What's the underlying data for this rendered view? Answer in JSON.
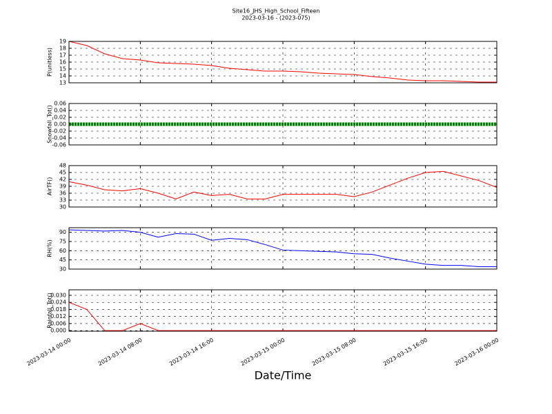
{
  "chart_data": [
    {
      "type": "line",
      "title": "Site16_JHS_High_School_Fifteen",
      "subtitle": "2023-03-16 - (2023-075)",
      "ylabel": "P(unitless)",
      "color": "#ff0000",
      "x": [
        "2023-03-14 00:00",
        "2023-03-14 02:00",
        "2023-03-14 04:00",
        "2023-03-14 06:00",
        "2023-03-14 08:00",
        "2023-03-14 10:00",
        "2023-03-14 12:00",
        "2023-03-14 14:00",
        "2023-03-14 16:00",
        "2023-03-14 18:00",
        "2023-03-14 20:00",
        "2023-03-14 22:00",
        "2023-03-15 00:00",
        "2023-03-15 02:00",
        "2023-03-15 04:00",
        "2023-03-15 06:00",
        "2023-03-15 08:00",
        "2023-03-15 10:00",
        "2023-03-15 12:00",
        "2023-03-15 14:00",
        "2023-03-15 16:00",
        "2023-03-15 18:00",
        "2023-03-15 20:00",
        "2023-03-15 22:00",
        "2023-03-16 00:00"
      ],
      "values": [
        19,
        18.4,
        17.2,
        16.5,
        16.3,
        15.9,
        15.8,
        15.7,
        15.5,
        15.1,
        14.9,
        14.7,
        14.7,
        14.6,
        14.4,
        14.3,
        14.2,
        13.9,
        13.7,
        13.4,
        13.3,
        13.3,
        13.2,
        13.1,
        13.1
      ],
      "xlim": [
        "2023-03-14 00:00",
        "2023-03-16 00:00"
      ],
      "ylim": [
        13,
        19
      ],
      "yticks": [
        13,
        14,
        15,
        16,
        17,
        18,
        19
      ]
    },
    {
      "type": "line",
      "ylabel": "Snowfall_Tot()",
      "color": "#008000",
      "x": [
        "2023-03-14 00:00",
        "2023-03-14 02:00",
        "2023-03-14 04:00",
        "2023-03-14 06:00",
        "2023-03-14 08:00",
        "2023-03-14 10:00",
        "2023-03-14 12:00",
        "2023-03-14 14:00",
        "2023-03-14 16:00",
        "2023-03-14 18:00",
        "2023-03-14 20:00",
        "2023-03-14 22:00",
        "2023-03-15 00:00",
        "2023-03-15 02:00",
        "2023-03-15 04:00",
        "2023-03-15 06:00",
        "2023-03-15 08:00",
        "2023-03-15 10:00",
        "2023-03-15 12:00",
        "2023-03-15 14:00",
        "2023-03-15 16:00",
        "2023-03-15 18:00",
        "2023-03-15 20:00",
        "2023-03-15 22:00",
        "2023-03-16 00:00"
      ],
      "values": [
        0,
        0,
        0,
        0,
        0,
        0,
        0,
        0,
        0,
        0,
        0,
        0,
        0,
        0,
        0,
        0,
        0,
        0,
        0,
        0,
        0,
        0,
        0,
        0,
        0
      ],
      "xlim": [
        "2023-03-14 00:00",
        "2023-03-16 00:00"
      ],
      "ylim": [
        -0.06,
        0.06
      ],
      "yticks": [
        {
          "value": -0.06,
          "label": "-0.06"
        },
        {
          "value": -0.04,
          "label": "-0.04"
        },
        {
          "value": -0.02,
          "label": "-0.02"
        },
        {
          "value": 0,
          "label": "0.00"
        },
        {
          "value": 0.02,
          "label": "0.02"
        },
        {
          "value": 0.04,
          "label": "0.04"
        },
        {
          "value": 0.06,
          "label": "0.06"
        }
      ]
    },
    {
      "type": "line",
      "ylabel": "AirTF()",
      "color": "#ff0000",
      "x": [
        "2023-03-14 00:00",
        "2023-03-14 02:00",
        "2023-03-14 04:00",
        "2023-03-14 06:00",
        "2023-03-14 08:00",
        "2023-03-14 10:00",
        "2023-03-14 12:00",
        "2023-03-14 14:00",
        "2023-03-14 16:00",
        "2023-03-14 18:00",
        "2023-03-14 20:00",
        "2023-03-14 22:00",
        "2023-03-15 00:00",
        "2023-03-15 02:00",
        "2023-03-15 04:00",
        "2023-03-15 06:00",
        "2023-03-15 08:00",
        "2023-03-15 10:00",
        "2023-03-15 12:00",
        "2023-03-15 14:00",
        "2023-03-15 16:00",
        "2023-03-15 18:00",
        "2023-03-15 20:00",
        "2023-03-15 22:00",
        "2023-03-16 00:00"
      ],
      "values": [
        41,
        39.5,
        37.5,
        37,
        38,
        36,
        33.5,
        36.5,
        35,
        35.5,
        33.5,
        33.5,
        35.5,
        35.5,
        35.5,
        35.5,
        34.5,
        36.5,
        39.5,
        42.5,
        45,
        45.5,
        43.5,
        41.5,
        38.5
      ],
      "xlim": [
        "2023-03-14 00:00",
        "2023-03-16 00:00"
      ],
      "ylim": [
        30,
        48
      ],
      "yticks": [
        30,
        33,
        36,
        39,
        42,
        45,
        48
      ]
    },
    {
      "type": "line",
      "ylabel": "RH(%)",
      "color": "#0000ff",
      "x": [
        "2023-03-14 00:00",
        "2023-03-14 02:00",
        "2023-03-14 04:00",
        "2023-03-14 06:00",
        "2023-03-14 08:00",
        "2023-03-14 10:00",
        "2023-03-14 12:00",
        "2023-03-14 14:00",
        "2023-03-14 16:00",
        "2023-03-14 18:00",
        "2023-03-14 20:00",
        "2023-03-14 22:00",
        "2023-03-15 00:00",
        "2023-03-15 02:00",
        "2023-03-15 04:00",
        "2023-03-15 06:00",
        "2023-03-15 08:00",
        "2023-03-15 10:00",
        "2023-03-15 12:00",
        "2023-03-15 14:00",
        "2023-03-15 16:00",
        "2023-03-15 18:00",
        "2023-03-15 20:00",
        "2023-03-15 22:00",
        "2023-03-16 00:00"
      ],
      "values": [
        94,
        93,
        92,
        93,
        90,
        82,
        88,
        87,
        77,
        80,
        78,
        70,
        61,
        60,
        59,
        58,
        55,
        54,
        48,
        43,
        38,
        36,
        36,
        34,
        34
      ],
      "xlim": [
        "2023-03-14 00:00",
        "2023-03-16 00:00"
      ],
      "ylim": [
        30,
        97.5
      ],
      "yticks": [
        30,
        45,
        60,
        75,
        90
      ]
    },
    {
      "type": "line",
      "ylabel": "Rainfall_Tot()",
      "xlabel": "Date/Time",
      "color": "#ff0000",
      "x": [
        "2023-03-14 00:00",
        "2023-03-14 02:00",
        "2023-03-14 04:00",
        "2023-03-14 06:00",
        "2023-03-14 08:00",
        "2023-03-14 10:00",
        "2023-03-14 12:00",
        "2023-03-14 14:00",
        "2023-03-14 16:00",
        "2023-03-14 18:00",
        "2023-03-14 20:00",
        "2023-03-14 22:00",
        "2023-03-15 00:00",
        "2023-03-15 02:00",
        "2023-03-15 04:00",
        "2023-03-15 06:00",
        "2023-03-15 08:00",
        "2023-03-15 10:00",
        "2023-03-15 12:00",
        "2023-03-15 14:00",
        "2023-03-15 16:00",
        "2023-03-15 18:00",
        "2023-03-15 20:00",
        "2023-03-15 22:00",
        "2023-03-16 00:00"
      ],
      "values": [
        0.024,
        0.018,
        0,
        0,
        0.006,
        0,
        0,
        0,
        0,
        0,
        0,
        0,
        0,
        0,
        0,
        0,
        0,
        0,
        0,
        0,
        0,
        0,
        0,
        0,
        0
      ],
      "xlim": [
        "2023-03-14 00:00",
        "2023-03-16 00:00"
      ],
      "ylim": [
        -0.0005,
        0.0347
      ],
      "yticks": [
        {
          "value": 0,
          "label": "0.000"
        },
        {
          "value": 0.006,
          "label": "0.006"
        },
        {
          "value": 0.012,
          "label": "0.012"
        },
        {
          "value": 0.018,
          "label": "0.018"
        },
        {
          "value": 0.024,
          "label": "0.024"
        },
        {
          "value": 0.03,
          "label": "0.030"
        }
      ],
      "xticks": [
        "2023-03-14 00:00",
        "2023-03-14 08:00",
        "2023-03-14 16:00",
        "2023-03-15 00:00",
        "2023-03-15 08:00",
        "2023-03-15 16:00",
        "2023-03-16 00:00"
      ]
    }
  ]
}
